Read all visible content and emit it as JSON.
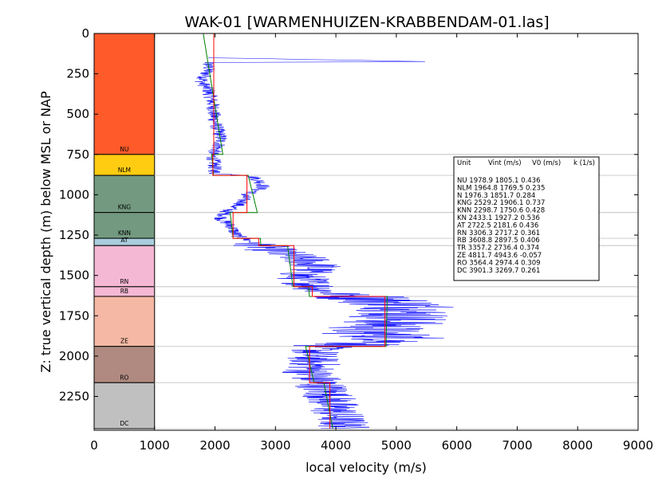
{
  "chart_data": {
    "type": "line",
    "title": "WAK-01 [WARMENHUIZEN-KRABBENDAM-01.las]",
    "xlabel": "local velocity (m/s)",
    "ylabel": "Z: true vertical depth (m) below MSL or NAP",
    "xlim": [
      0,
      9000
    ],
    "ylim": [
      2460,
      0
    ],
    "y_inverted": true,
    "xticks": [
      0,
      1000,
      2000,
      3000,
      4000,
      5000,
      6000,
      7000,
      8000,
      9000
    ],
    "yticks": [
      0,
      250,
      500,
      750,
      1000,
      1250,
      1500,
      1750,
      2000,
      2250
    ],
    "units": [
      {
        "name": "NU",
        "top": 0,
        "base": 750,
        "color": "#ff5a2a",
        "vint": 1978.9,
        "v0": 1805.1,
        "k": 0.436
      },
      {
        "name": "NLM",
        "top": 750,
        "base": 880,
        "color": "#ffcc11",
        "vint": 1964.8,
        "v0": 1769.5,
        "k": 0.235
      },
      {
        "name": "KNG",
        "top": 880,
        "base": 1110,
        "color": "#739a80",
        "vint": 2529.2,
        "v0": 1906.1,
        "k": 0.737
      },
      {
        "name": "KNN",
        "top": 1110,
        "base": 1270,
        "color": "#739a80",
        "vint": 2298.7,
        "v0": 1750.6,
        "k": 0.428
      },
      {
        "name": "AT",
        "top": 1270,
        "base": 1315,
        "color": "#a9cedd",
        "vint": 2722.5,
        "v0": 2181.6,
        "k": 0.436
      },
      {
        "name": "RN",
        "top": 1315,
        "base": 1570,
        "color": "#f5b8d4",
        "vint": 3306.3,
        "v0": 2717.2,
        "k": 0.361
      },
      {
        "name": "RB",
        "top": 1570,
        "base": 1630,
        "color": "#f5b8d4",
        "vint": 3608.8,
        "v0": 2897.5,
        "k": 0.406
      },
      {
        "name": "ZE",
        "top": 1630,
        "base": 1940,
        "color": "#f5b8a4",
        "vint": 4811.7,
        "v0": 4943.6,
        "k": -0.057
      },
      {
        "name": "RO",
        "top": 1940,
        "base": 2165,
        "color": "#b08a80",
        "vint": 3564.4,
        "v0": 2974.4,
        "k": 0.309
      },
      {
        "name": "DC",
        "top": 2165,
        "base": 2450,
        "color": "#c0c0c0",
        "vint": 3901.3,
        "v0": 3269.7,
        "k": 0.261
      }
    ],
    "legend_box": {
      "header": [
        "Unit",
        "Vint (m/s)",
        "V0 (m/s)",
        "k (1/s)"
      ],
      "rows": [
        "NU     1978.9  1805.1  0.436",
        "NLM    1964.8  1769.5  0.235",
        "N    1976.3  1851.7  0.284",
        "KNG    2529.2  1906.1  0.737",
        "KNN    2298.7  1750.6  0.428",
        "KN    2433.1  1927.2  0.536",
        "AT    2722.5  2181.6  0.436",
        "RN    3306.3  2717.2  0.361",
        "RB    3608.8  2897.5  0.406",
        "TR    3357.2  2736.4  0.374",
        "ZE    4811.7  4943.6  -0.057",
        "RO    3564.4  2974.4  0.309",
        "DC    3901.3  3269.7  0.261"
      ]
    },
    "log_profile": [
      [
        0,
        1780
      ],
      [
        150,
        1850
      ],
      [
        175,
        5550
      ],
      [
        180,
        1900
      ],
      [
        230,
        1880
      ],
      [
        300,
        1780
      ],
      [
        350,
        1890
      ],
      [
        400,
        1930
      ],
      [
        450,
        1970
      ],
      [
        500,
        1980
      ],
      [
        550,
        2000
      ],
      [
        600,
        2050
      ],
      [
        650,
        2100
      ],
      [
        700,
        2060
      ],
      [
        750,
        1950
      ],
      [
        800,
        1990
      ],
      [
        870,
        2000
      ],
      [
        880,
        2600
      ],
      [
        920,
        2750
      ],
      [
        950,
        2800
      ],
      [
        980,
        2650
      ],
      [
        1000,
        2500
      ],
      [
        1050,
        2450
      ],
      [
        1100,
        2200
      ],
      [
        1150,
        2100
      ],
      [
        1200,
        2280
      ],
      [
        1250,
        2350
      ],
      [
        1300,
        2650
      ],
      [
        1350,
        3000
      ],
      [
        1400,
        3500
      ],
      [
        1450,
        3700
      ],
      [
        1500,
        3400
      ],
      [
        1550,
        3550
      ],
      [
        1600,
        3800
      ],
      [
        1650,
        4700
      ],
      [
        1700,
        5300
      ],
      [
        1750,
        5100
      ],
      [
        1800,
        4900
      ],
      [
        1850,
        4500
      ],
      [
        1900,
        5200
      ],
      [
        1950,
        3700
      ],
      [
        2000,
        3600
      ],
      [
        2050,
        3650
      ],
      [
        2100,
        3550
      ],
      [
        2150,
        3700
      ],
      [
        2200,
        3800
      ],
      [
        2250,
        3900
      ],
      [
        2300,
        3950
      ],
      [
        2350,
        4000
      ],
      [
        2400,
        4100
      ],
      [
        2450,
        4150
      ]
    ],
    "fit_green": [
      [
        0,
        1805
      ],
      [
        750,
        2130
      ],
      [
        750,
        1945
      ],
      [
        880,
        1975
      ],
      [
        880,
        2550
      ],
      [
        1110,
        2700
      ],
      [
        1110,
        2250
      ],
      [
        1270,
        2300
      ],
      [
        1270,
        2750
      ],
      [
        1315,
        2760
      ],
      [
        1315,
        3200
      ],
      [
        1570,
        3290
      ],
      [
        1570,
        3550
      ],
      [
        1630,
        3560
      ],
      [
        1630,
        4850
      ],
      [
        1940,
        4830
      ],
      [
        1940,
        3500
      ],
      [
        2165,
        3640
      ],
      [
        2165,
        3800
      ],
      [
        2450,
        3950
      ]
    ],
    "vint_red": [
      [
        0,
        1979
      ],
      [
        750,
        1979
      ],
      [
        750,
        1965
      ],
      [
        880,
        1965
      ],
      [
        880,
        2529
      ],
      [
        1110,
        2529
      ],
      [
        1110,
        2299
      ],
      [
        1270,
        2299
      ],
      [
        1270,
        2722
      ],
      [
        1315,
        2722
      ],
      [
        1315,
        3306
      ],
      [
        1570,
        3306
      ],
      [
        1570,
        3609
      ],
      [
        1630,
        3609
      ],
      [
        1630,
        4812
      ],
      [
        1940,
        4812
      ],
      [
        1940,
        3564
      ],
      [
        2165,
        3564
      ],
      [
        2165,
        3901
      ],
      [
        2450,
        3901
      ]
    ]
  }
}
